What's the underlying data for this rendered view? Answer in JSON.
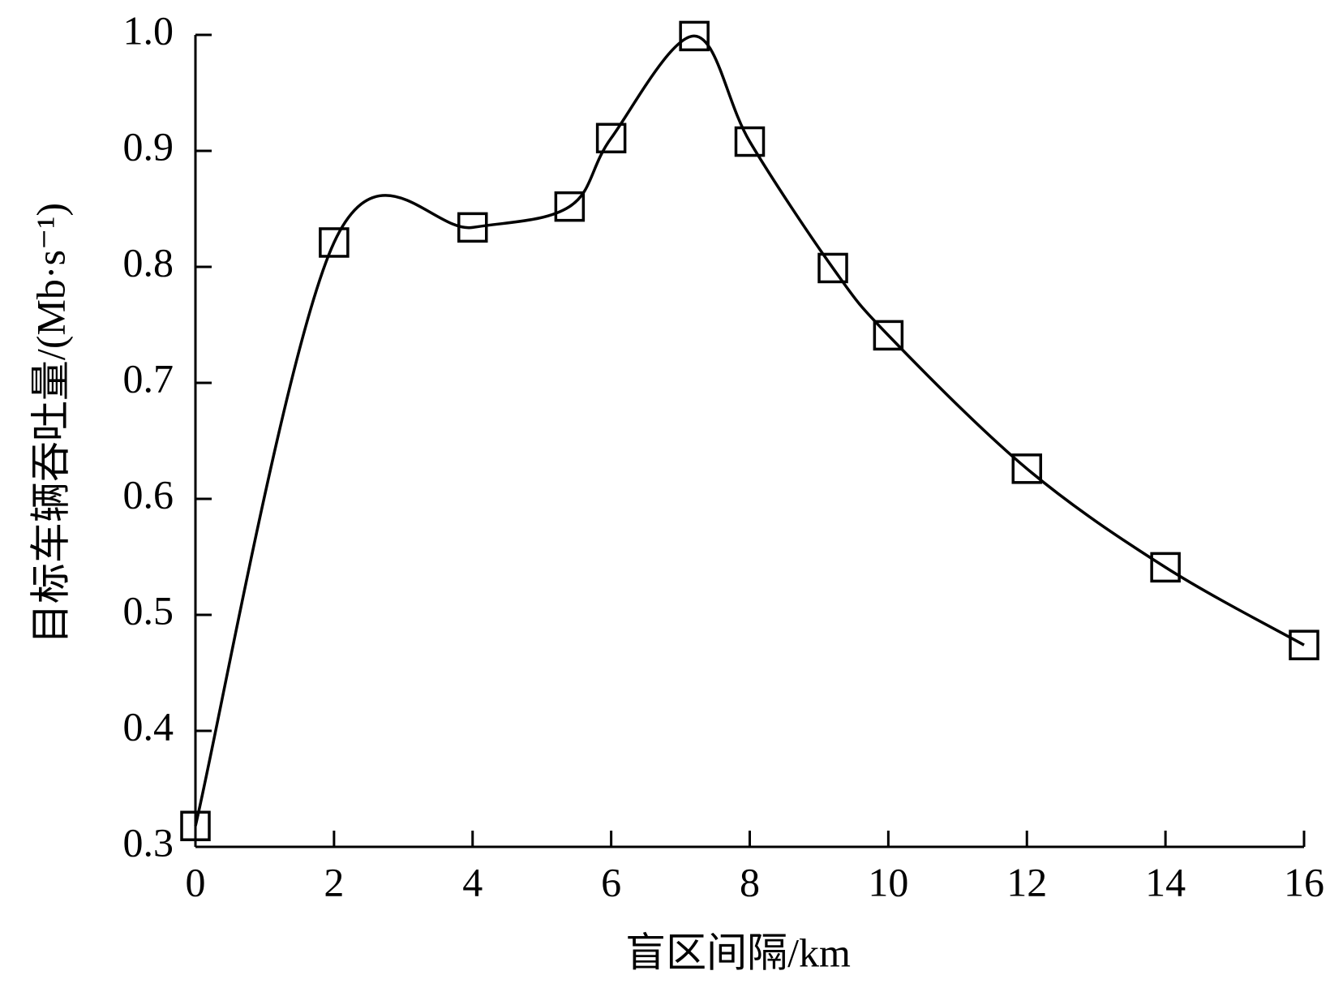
{
  "chart_data": {
    "type": "line",
    "xlabel": "盲区间隔/km",
    "ylabel": "目标车辆吞吐量/(Mb·s⁻¹)",
    "x": [
      0,
      2,
      4,
      5.4,
      6,
      7.2,
      8,
      9.2,
      10,
      12,
      14,
      16
    ],
    "series": [
      {
        "color": "#000000",
        "marker": "square",
        "values": [
          0.318,
          0.821,
          0.834,
          0.852,
          0.911,
          0.999,
          0.908,
          0.799,
          0.741,
          0.626,
          0.541,
          0.474
        ]
      }
    ],
    "xlim": [
      0,
      16
    ],
    "xticks": [
      0,
      2,
      4,
      6,
      8,
      10,
      12,
      14,
      16
    ],
    "ylim": [
      0.3,
      1.0
    ],
    "yticks": [
      0.3,
      0.4,
      0.5,
      0.6,
      0.7,
      0.8,
      0.9,
      {
        "value": 1.0,
        "label": "1.0"
      }
    ],
    "smooth": true
  }
}
